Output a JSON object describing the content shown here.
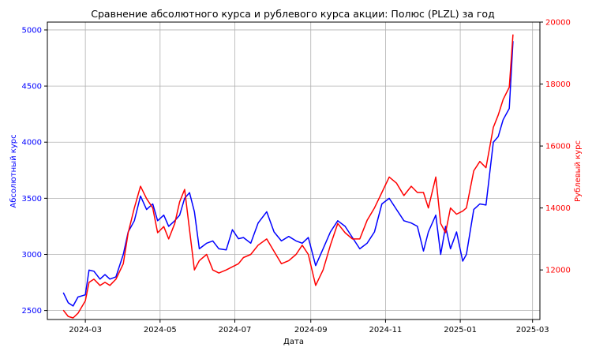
{
  "chart_data": {
    "type": "line",
    "title": "Сравнение абсолютного курса и рублевого курса акции: Полюс (PLZL) за год",
    "xlabel": "Дата",
    "ylabel_left": "Абсолютный курс",
    "ylabel_right": "Рублевый курс",
    "x_ticks": [
      "2024-03",
      "2024-05",
      "2024-07",
      "2024-09",
      "2024-11",
      "2025-01",
      "2025-03"
    ],
    "xlim": [
      "2024-01-30",
      "2025-03-07"
    ],
    "y_left_ticks": [
      "2500",
      "3000",
      "3500",
      "4000",
      "4500",
      "5000"
    ],
    "ylim_left": [
      2420,
      5070
    ],
    "y_right_ticks": [
      "12000",
      "14000",
      "16000",
      "18000",
      "20000"
    ],
    "ylim_right": [
      10400,
      20000
    ],
    "grid": true,
    "colors": {
      "left_axis": "#0000ff",
      "right_axis": "#ff0000",
      "grid": "#b0b0b0"
    },
    "series": [
      {
        "axis": "left",
        "color": "#0000ff",
        "x": [
          "2024-02-12",
          "2024-02-16",
          "2024-02-20",
          "2024-02-24",
          "2024-03-01",
          "2024-03-04",
          "2024-03-08",
          "2024-03-13",
          "2024-03-17",
          "2024-03-21",
          "2024-03-26",
          "2024-04-01",
          "2024-04-05",
          "2024-04-10",
          "2024-04-15",
          "2024-04-20",
          "2024-04-25",
          "2024-04-29",
          "2024-05-04",
          "2024-05-08",
          "2024-05-13",
          "2024-05-17",
          "2024-05-21",
          "2024-05-25",
          "2024-05-29",
          "2024-06-02",
          "2024-06-08",
          "2024-06-13",
          "2024-06-18",
          "2024-06-24",
          "2024-06-29",
          "2024-07-04",
          "2024-07-08",
          "2024-07-14",
          "2024-07-20",
          "2024-07-27",
          "2024-08-02",
          "2024-08-08",
          "2024-08-14",
          "2024-08-20",
          "2024-08-25",
          "2024-08-30",
          "2024-09-05",
          "2024-09-11",
          "2024-09-17",
          "2024-09-23",
          "2024-09-29",
          "2024-10-05",
          "2024-10-11",
          "2024-10-17",
          "2024-10-23",
          "2024-10-29",
          "2024-11-04",
          "2024-11-10",
          "2024-11-16",
          "2024-11-22",
          "2024-11-27",
          "2024-12-02",
          "2024-12-06",
          "2024-12-12",
          "2024-12-16",
          "2024-12-20",
          "2024-12-24",
          "2024-12-29",
          "2025-01-03",
          "2025-01-06",
          "2025-01-12",
          "2025-01-17",
          "2025-01-22",
          "2025-01-28",
          "2025-02-01",
          "2025-02-05",
          "2025-02-10",
          "2025-02-13"
        ],
        "values": [
          2660,
          2570,
          2540,
          2620,
          2640,
          2860,
          2850,
          2780,
          2820,
          2780,
          2800,
          3000,
          3200,
          3300,
          3520,
          3400,
          3450,
          3300,
          3350,
          3250,
          3300,
          3350,
          3500,
          3550,
          3380,
          3050,
          3100,
          3120,
          3050,
          3040,
          3220,
          3140,
          3150,
          3100,
          3280,
          3380,
          3200,
          3120,
          3160,
          3120,
          3100,
          3150,
          2900,
          3050,
          3200,
          3300,
          3250,
          3150,
          3050,
          3100,
          3200,
          3450,
          3500,
          3400,
          3300,
          3280,
          3250,
          3030,
          3200,
          3350,
          3000,
          3250,
          3050,
          3200,
          2940,
          3000,
          3400,
          3450,
          3440,
          4000,
          4050,
          4200,
          4300,
          4900
        ]
      },
      {
        "axis": "right",
        "color": "#ff0000",
        "x": [
          "2024-02-12",
          "2024-02-16",
          "2024-02-20",
          "2024-02-24",
          "2024-03-01",
          "2024-03-04",
          "2024-03-08",
          "2024-03-13",
          "2024-03-17",
          "2024-03-21",
          "2024-03-26",
          "2024-04-01",
          "2024-04-05",
          "2024-04-10",
          "2024-04-15",
          "2024-04-20",
          "2024-04-25",
          "2024-04-29",
          "2024-05-04",
          "2024-05-08",
          "2024-05-13",
          "2024-05-17",
          "2024-05-21",
          "2024-05-25",
          "2024-05-29",
          "2024-06-02",
          "2024-06-08",
          "2024-06-13",
          "2024-06-18",
          "2024-06-24",
          "2024-06-29",
          "2024-07-04",
          "2024-07-08",
          "2024-07-14",
          "2024-07-20",
          "2024-07-27",
          "2024-08-02",
          "2024-08-08",
          "2024-08-14",
          "2024-08-20",
          "2024-08-25",
          "2024-08-30",
          "2024-09-05",
          "2024-09-11",
          "2024-09-17",
          "2024-09-23",
          "2024-09-29",
          "2024-10-05",
          "2024-10-11",
          "2024-10-17",
          "2024-10-23",
          "2024-10-29",
          "2024-11-04",
          "2024-11-10",
          "2024-11-16",
          "2024-11-22",
          "2024-11-27",
          "2024-12-02",
          "2024-12-06",
          "2024-12-12",
          "2024-12-16",
          "2024-12-20",
          "2024-12-24",
          "2024-12-29",
          "2025-01-03",
          "2025-01-06",
          "2025-01-12",
          "2025-01-17",
          "2025-01-22",
          "2025-01-28",
          "2025-02-01",
          "2025-02-05",
          "2025-02-10",
          "2025-02-13"
        ],
        "values": [
          10700,
          10500,
          10450,
          10600,
          11000,
          11600,
          11700,
          11500,
          11600,
          11500,
          11700,
          12200,
          13200,
          14000,
          14700,
          14300,
          14000,
          13200,
          13400,
          13000,
          13500,
          14200,
          14600,
          13300,
          12000,
          12300,
          12500,
          12000,
          11900,
          12000,
          12100,
          12200,
          12400,
          12500,
          12800,
          13000,
          12600,
          12200,
          12300,
          12500,
          12800,
          12500,
          11500,
          12000,
          12800,
          13500,
          13200,
          13000,
          13000,
          13600,
          14000,
          14500,
          15000,
          14800,
          14400,
          14700,
          14500,
          14500,
          14000,
          15000,
          13500,
          13200,
          14000,
          13800,
          13900,
          14000,
          15200,
          15500,
          15300,
          16600,
          17000,
          17500,
          17900,
          19600
        ]
      }
    ]
  }
}
